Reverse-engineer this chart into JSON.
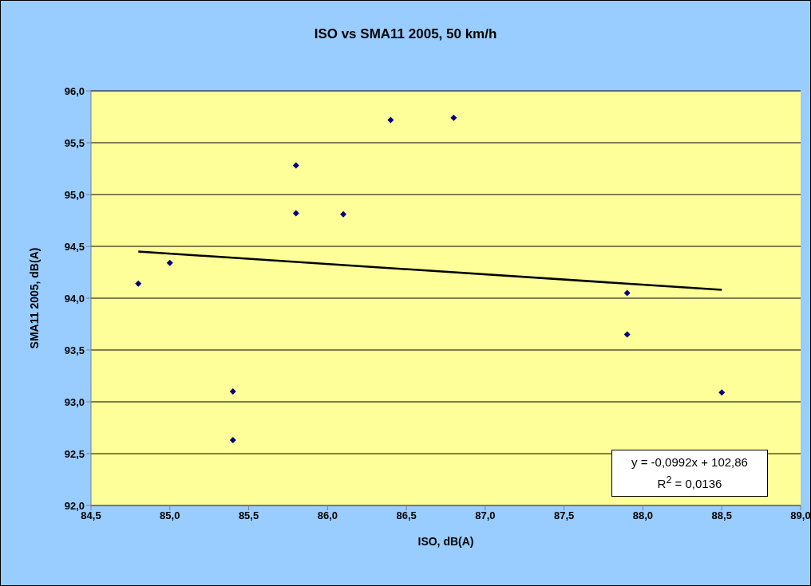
{
  "chart_data": {
    "type": "scatter",
    "title": "ISO vs SMA11 2005, 50 km/h",
    "xlabel": "ISO, dB(A)",
    "ylabel": "SMA11 2005, dB(A)",
    "series": [
      {
        "color": "#000080",
        "marker": "diamond",
        "x": [
          84.8,
          85.0,
          85.4,
          85.4,
          85.8,
          85.8,
          86.1,
          86.4,
          86.8,
          87.9,
          87.9,
          88.5
        ],
        "values": [
          94.14,
          94.34,
          93.1,
          92.63,
          95.28,
          94.82,
          94.81,
          95.72,
          95.74,
          94.05,
          93.65,
          93.09
        ]
      },
      {
        "type": "line",
        "color": "#000000",
        "x": [
          84.8,
          88.5
        ],
        "values": [
          94.45,
          94.08
        ]
      }
    ],
    "xlim": [
      84.5,
      89.0
    ],
    "xticks": [
      {
        "value": 84.5,
        "label": "84,5"
      },
      {
        "value": 85,
        "label": "85,0"
      },
      {
        "value": 85.5,
        "label": "85,5"
      },
      {
        "value": 86,
        "label": "86,0"
      },
      {
        "value": 86.5,
        "label": "86,5"
      },
      {
        "value": 87,
        "label": "87,0"
      },
      {
        "value": 87.5,
        "label": "87,5"
      },
      {
        "value": 88,
        "label": "88,0"
      },
      {
        "value": 88.5,
        "label": "88,5"
      },
      {
        "value": 89,
        "label": "89,0"
      }
    ],
    "ylim": [
      92.0,
      96.0
    ],
    "yticks": [
      {
        "value": 92,
        "label": "92,0"
      },
      {
        "value": 92.5,
        "label": "92,5"
      },
      {
        "value": 93,
        "label": "93,0"
      },
      {
        "value": 93.5,
        "label": "93,5"
      },
      {
        "value": 94,
        "label": "94,0"
      },
      {
        "value": 94.5,
        "label": "94,5"
      },
      {
        "value": 95,
        "label": "95,0"
      },
      {
        "value": 95.5,
        "label": "95,5"
      },
      {
        "value": 96,
        "label": "96,0"
      }
    ],
    "grid": "y",
    "legend": false,
    "annotations": [
      "y = -0,0992x + 102,86",
      "R$^{2}$ = 0,0136"
    ]
  }
}
